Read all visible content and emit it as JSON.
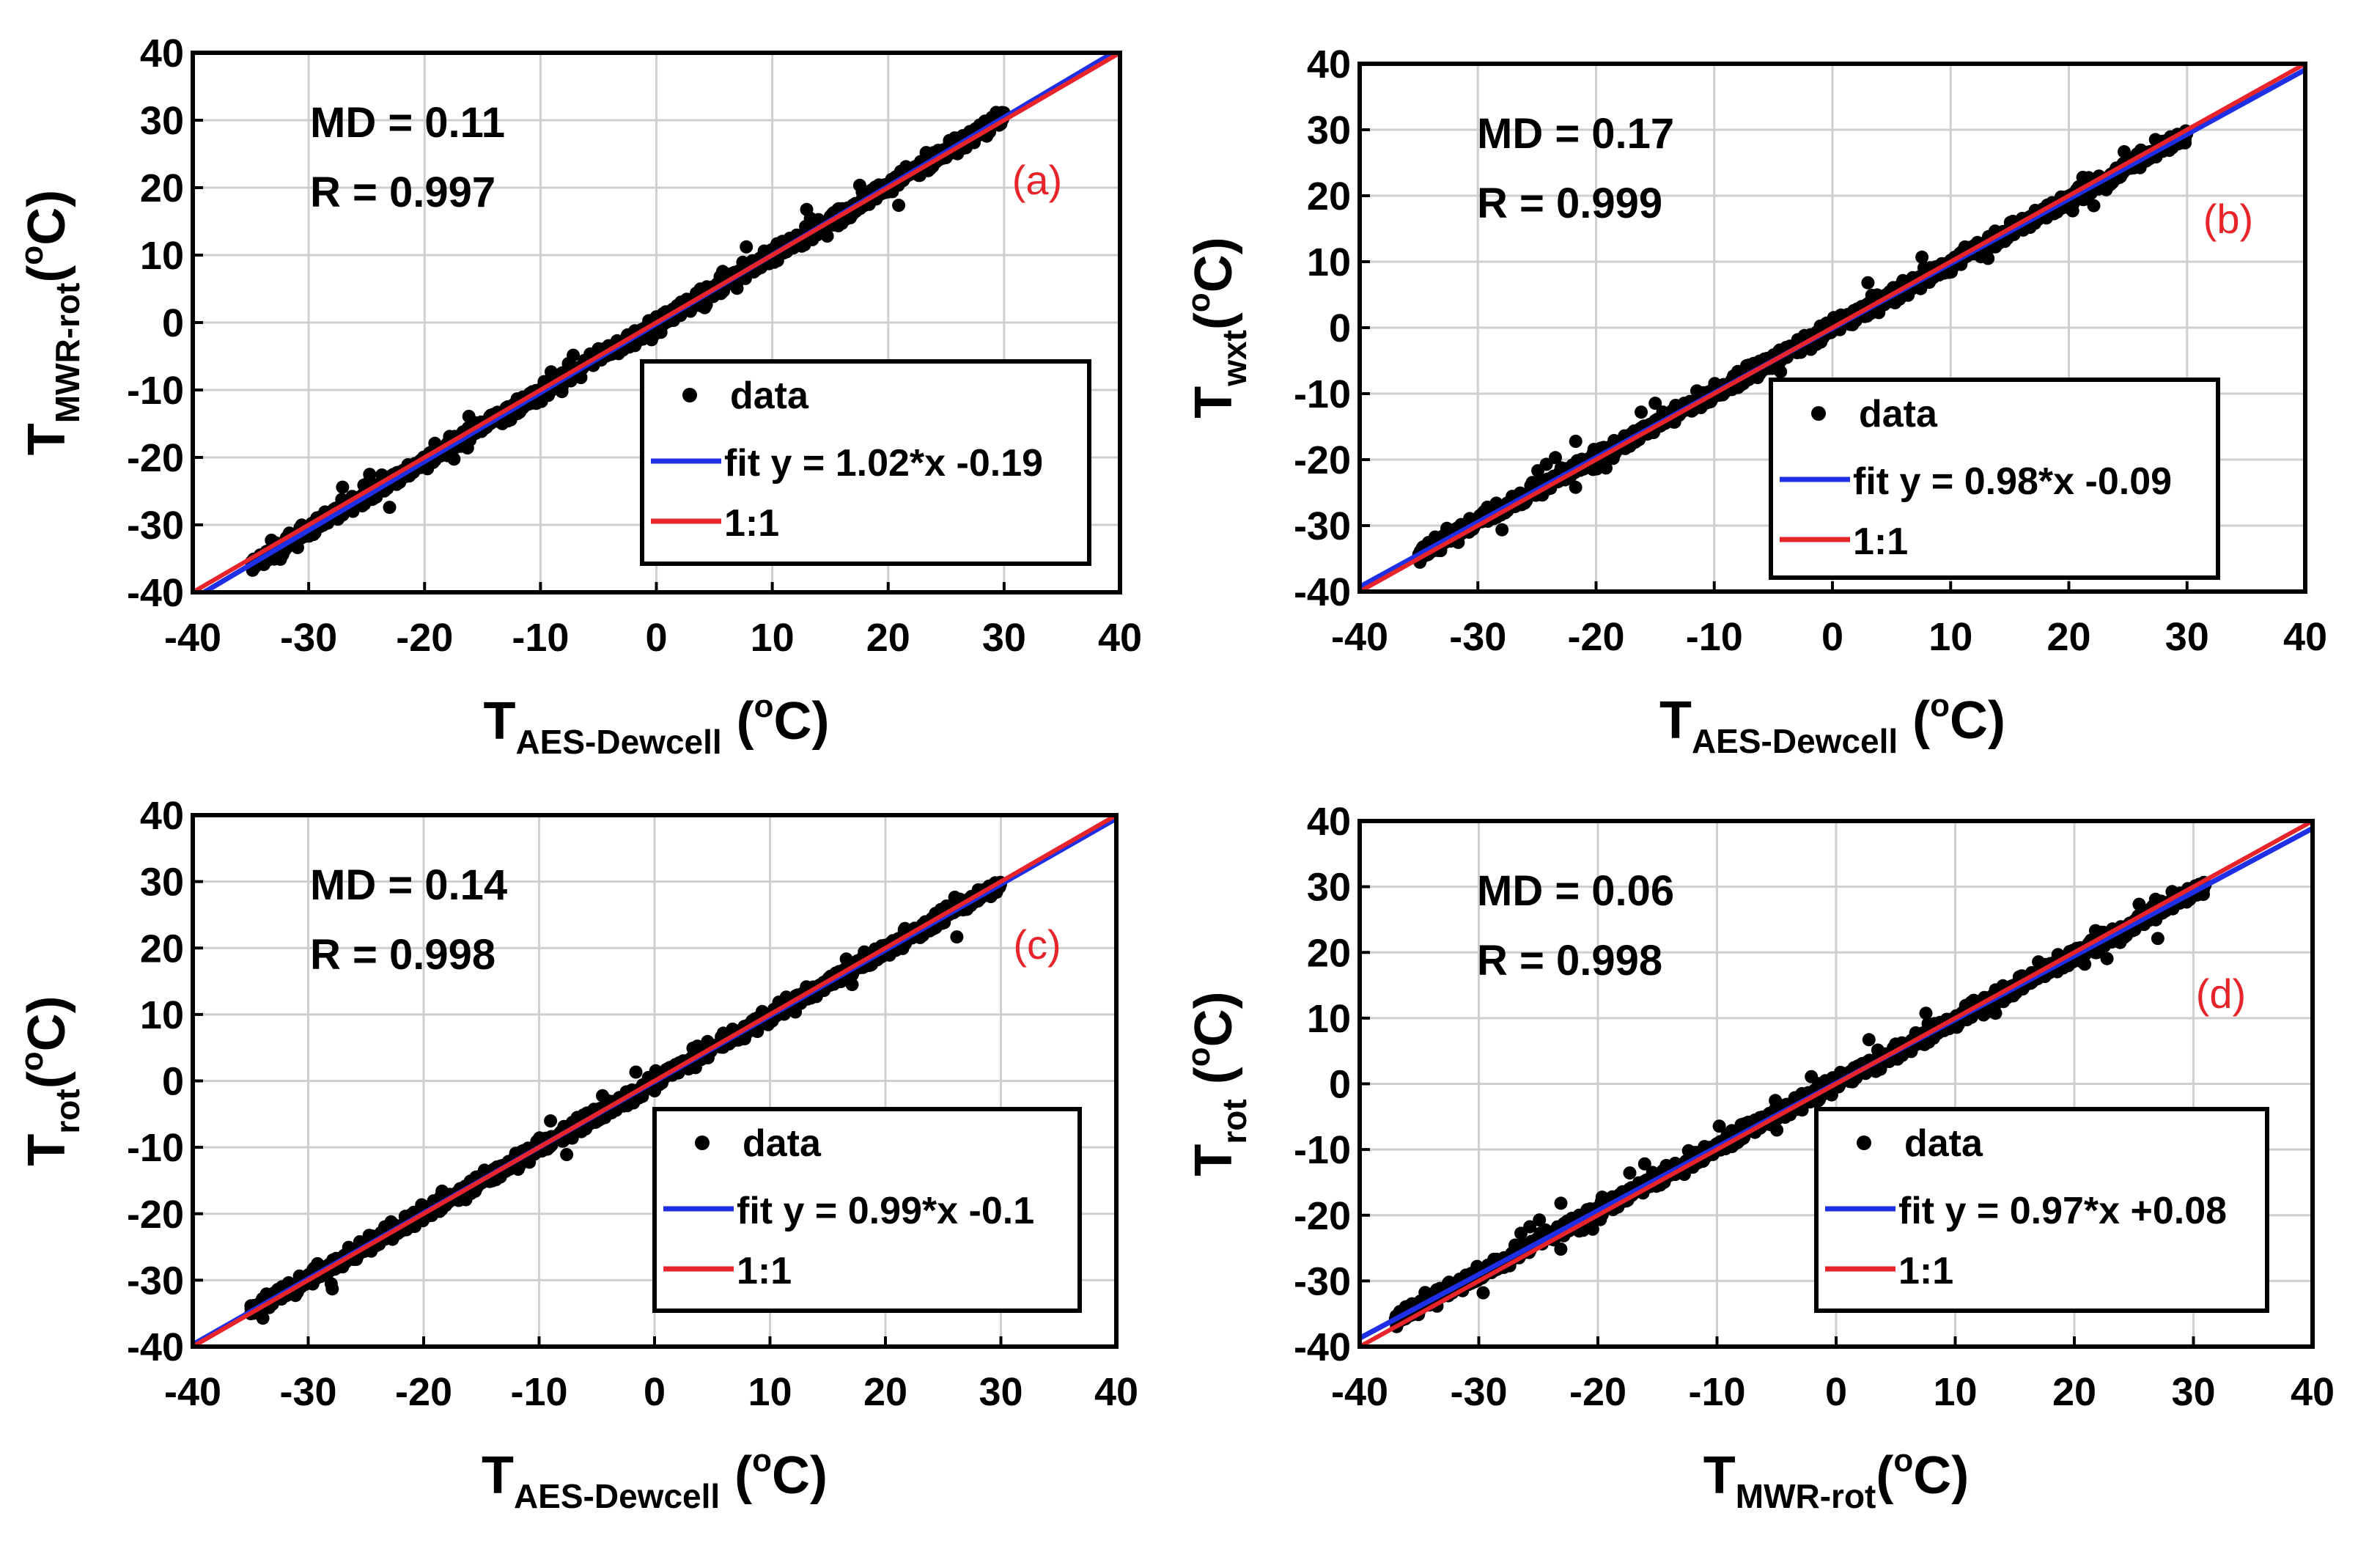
{
  "figure": {
    "label_color": "#e8242b",
    "fit_color": "#1f2fe6",
    "identity_color": "#e8242b",
    "point_color": "#000000",
    "grid_color": "#cfcfcf"
  },
  "chart_data": [
    {
      "type": "scatter",
      "panel_label": "(a)",
      "md_text": "MD = 0.11",
      "r_text": "R = 0.997",
      "xlabel": {
        "main": "T",
        "sub": "AES-Dewcell",
        "unit_open": " (",
        "unit_sup": "o",
        "unit_close": "C)"
      },
      "ylabel": {
        "main": "T",
        "sub": "MWR-rot",
        "unit_open": "(",
        "unit_sup": "o",
        "unit_close": "C)"
      },
      "xlim": [
        -40,
        40
      ],
      "ylim": [
        -40,
        40
      ],
      "xticks": [
        "-40",
        "-30",
        "-20",
        "-10",
        "0",
        "10",
        "20",
        "30",
        "40"
      ],
      "yticks": [
        "-40",
        "-30",
        "-20",
        "-10",
        "0",
        "10",
        "20",
        "30",
        "40"
      ],
      "fit": {
        "slope": 1.02,
        "intercept": -0.19
      },
      "data_range": [
        -35,
        30
      ],
      "legend": {
        "data": "data",
        "fit": "fit y = 1.02*x -0.19",
        "identity": "1:1"
      }
    },
    {
      "type": "scatter",
      "panel_label": "(b)",
      "md_text": "MD = 0.17",
      "r_text": "R = 0.999",
      "xlabel": {
        "main": "T",
        "sub": "AES-Dewcell",
        "unit_open": " (",
        "unit_sup": "o",
        "unit_close": "C)"
      },
      "ylabel": {
        "main": "T",
        "sub": "wxt",
        "unit_open": "(",
        "unit_sup": "o",
        "unit_close": "C)"
      },
      "xlim": [
        -40,
        40
      ],
      "ylim": [
        -40,
        40
      ],
      "xticks": [
        "-40",
        "-30",
        "-20",
        "-10",
        "0",
        "10",
        "20",
        "30",
        "40"
      ],
      "yticks": [
        "-40",
        "-30",
        "-20",
        "-10",
        "0",
        "10",
        "20",
        "30",
        "40"
      ],
      "fit": {
        "slope": 0.98,
        "intercept": -0.09
      },
      "data_range": [
        -35,
        30
      ],
      "legend": {
        "data": "data",
        "fit": "fit y = 0.98*x -0.09",
        "identity": "1:1"
      }
    },
    {
      "type": "scatter",
      "panel_label": "(c)",
      "md_text": "MD = 0.14",
      "r_text": "R = 0.998",
      "xlabel": {
        "main": "T",
        "sub": "AES-Dewcell",
        "unit_open": " (",
        "unit_sup": "o",
        "unit_close": "C)"
      },
      "ylabel": {
        "main": "T",
        "sub": "rot",
        "unit_open": "(",
        "unit_sup": "o",
        "unit_close": "C)"
      },
      "xlim": [
        -40,
        40
      ],
      "ylim": [
        -40,
        40
      ],
      "xticks": [
        "-40",
        "-30",
        "-20",
        "-10",
        "0",
        "10",
        "20",
        "30",
        "40"
      ],
      "yticks": [
        "-40",
        "-30",
        "-20",
        "-10",
        "0",
        "10",
        "20",
        "30",
        "40"
      ],
      "fit": {
        "slope": 0.99,
        "intercept": -0.1
      },
      "data_range": [
        -35,
        30
      ],
      "legend": {
        "data": "data",
        "fit": "fit y = 0.99*x -0.1",
        "identity": "1:1"
      }
    },
    {
      "type": "scatter",
      "panel_label": "(d)",
      "md_text": "MD = 0.06",
      "r_text": "R = 0.998",
      "xlabel": {
        "main": "T",
        "sub": "MWR-rot",
        "unit_open": "(",
        "unit_sup": "o",
        "unit_close": "C)"
      },
      "ylabel": {
        "main": "T",
        "sub": "rot",
        "unit_open": " (",
        "unit_sup": "o",
        "unit_close": "C)"
      },
      "xlim": [
        -40,
        40
      ],
      "ylim": [
        -40,
        40
      ],
      "xticks": [
        "-40",
        "-30",
        "-20",
        "-10",
        "0",
        "10",
        "20",
        "30",
        "40"
      ],
      "yticks": [
        "-40",
        "-30",
        "-20",
        "-10",
        "0",
        "10",
        "20",
        "30",
        "40"
      ],
      "fit": {
        "slope": 0.97,
        "intercept": 0.08
      },
      "data_range": [
        -37,
        31
      ],
      "legend": {
        "data": "data",
        "fit": "fit y = 0.97*x +0.08",
        "identity": "1:1"
      }
    }
  ]
}
